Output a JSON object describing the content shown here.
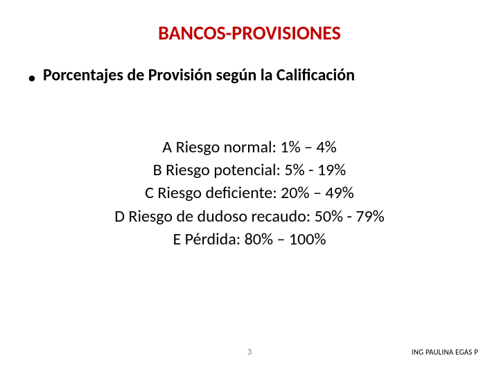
{
  "title": {
    "text": "BANCOS-PROVISIONES",
    "color": "#c00000",
    "fontsize": 28
  },
  "subtitle": {
    "bullet": "•",
    "text": "Porcentajes de Provisión según la Calificación",
    "color": "#000000",
    "fontsize": 24
  },
  "risk_items": {
    "fontsize": 24,
    "color": "#000000",
    "lines": [
      "A   Riesgo normal:  1% – 4%",
      "B   Riesgo potencial: 5% - 19%",
      "C   Riesgo deficiente: 20% – 49%",
      "D   Riesgo de dudoso recaudo: 50% - 79%",
      "E   Pérdida: 80% – 100%"
    ]
  },
  "footer": {
    "page_number": "3",
    "author": "ING PAULINA EGAS P"
  },
  "background_color": "#ffffff"
}
